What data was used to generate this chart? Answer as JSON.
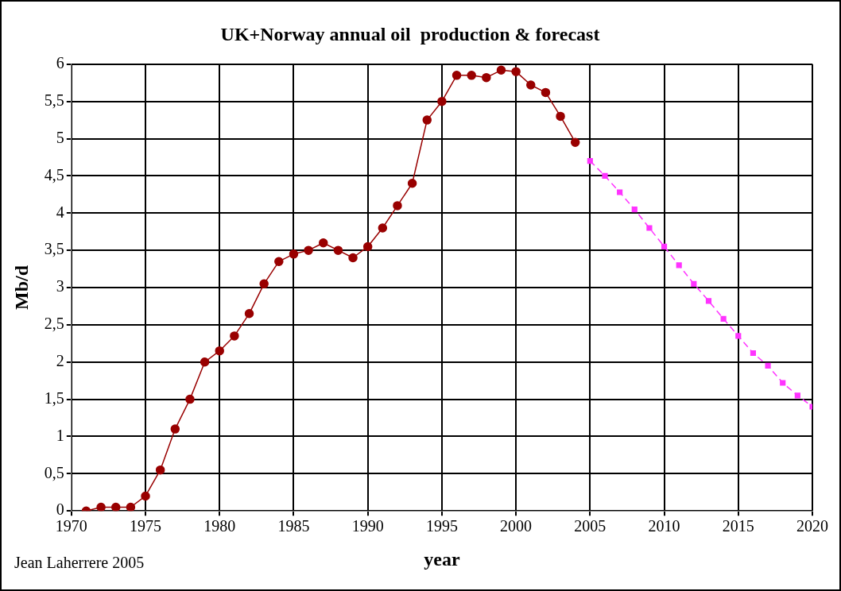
{
  "chart_data": {
    "type": "line",
    "title": "UK+Norway annual oil  production & forecast",
    "xlabel": "year",
    "ylabel": "Mb/d",
    "annotations": [
      "Jean Laherrere 2005"
    ],
    "series": [
      {
        "color": "#990000",
        "marker": "circle",
        "line_style": "solid",
        "x": [
          1971,
          1972,
          1973,
          1974,
          1975,
          1976,
          1977,
          1978,
          1979,
          1980,
          1981,
          1982,
          1983,
          1984,
          1985,
          1986,
          1987,
          1988,
          1989,
          1990,
          1991,
          1992,
          1993,
          1994,
          1995,
          1996,
          1997,
          1998,
          1999,
          2000,
          2001,
          2002,
          2003,
          2004
        ],
        "values": [
          0.0,
          0.05,
          0.05,
          0.05,
          0.2,
          0.55,
          1.1,
          1.5,
          2.0,
          2.15,
          2.35,
          2.65,
          3.05,
          3.35,
          3.45,
          3.5,
          3.6,
          3.5,
          3.4,
          3.55,
          3.8,
          4.1,
          4.4,
          5.25,
          5.5,
          5.85,
          5.85,
          5.82,
          5.92,
          5.9,
          5.72,
          5.62,
          5.3,
          4.95
        ]
      },
      {
        "color": "#ff33ff",
        "marker": "square",
        "line_style": "dashed",
        "x": [
          2005,
          2006,
          2007,
          2008,
          2009,
          2010,
          2011,
          2012,
          2013,
          2014,
          2015,
          2016,
          2017,
          2018,
          2019,
          2020
        ],
        "values": [
          4.7,
          4.5,
          4.28,
          4.05,
          3.8,
          3.55,
          3.3,
          3.05,
          2.82,
          2.58,
          2.35,
          2.12,
          1.95,
          1.72,
          1.55,
          1.4
        ]
      }
    ],
    "xlim": [
      1970,
      2020
    ],
    "xticks": [
      1970,
      1975,
      1980,
      1985,
      1990,
      1995,
      2000,
      2005,
      2010,
      2015,
      2020
    ],
    "ylim": [
      0,
      6
    ],
    "yticks": [
      0,
      {
        "value": 0.5,
        "label": "0,5"
      },
      1,
      {
        "value": 1.5,
        "label": "1,5"
      },
      2,
      {
        "value": 2.5,
        "label": "2,5"
      },
      3,
      {
        "value": 3.5,
        "label": "3,5"
      },
      4,
      {
        "value": 4.5,
        "label": "4,5"
      },
      5,
      {
        "value": 5.5,
        "label": "5,5"
      },
      6
    ],
    "grid": true,
    "legend": false
  }
}
